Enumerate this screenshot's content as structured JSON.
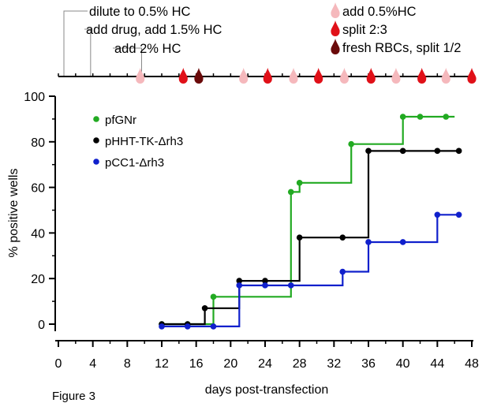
{
  "figure_label": "Figure 3",
  "colors": {
    "figure_label": "#e020e0",
    "pfGNr": "#22aa22",
    "pHHT": "#000000",
    "pCC1": "#1020cc",
    "drop_pale": "#f5b8bc",
    "drop_red": "#e01018",
    "drop_dark": "#6a0a0a"
  },
  "timeline": {
    "events": [
      {
        "label": "dilute to 0.5% HC",
        "day": 0
      },
      {
        "label": "add drug, add 1.5% HC",
        "day": 2
      },
      {
        "label": "add 2% HC",
        "day": 6
      }
    ],
    "legend": [
      {
        "label": "add 0.5%HC",
        "type": "pale",
        "icon": "pale-drop-icon"
      },
      {
        "label": "split 2:3",
        "type": "red",
        "icon": "red-drop-icon"
      },
      {
        "label": "fresh RBCs, split 1/2",
        "type": "dark",
        "icon": "dark-drop-icon"
      }
    ],
    "drops": [
      {
        "day": 9.5,
        "type": "pale"
      },
      {
        "day": 14.5,
        "type": "red"
      },
      {
        "day": 16.3,
        "type": "dark"
      },
      {
        "day": 21.5,
        "type": "pale"
      },
      {
        "day": 24.3,
        "type": "red"
      },
      {
        "day": 27.3,
        "type": "pale"
      },
      {
        "day": 30.2,
        "type": "red"
      },
      {
        "day": 33.2,
        "type": "pale"
      },
      {
        "day": 36.3,
        "type": "red"
      },
      {
        "day": 39.2,
        "type": "pale"
      },
      {
        "day": 42.2,
        "type": "red"
      },
      {
        "day": 45,
        "type": "pale"
      },
      {
        "day": 48,
        "type": "red"
      }
    ]
  },
  "chart_data": {
    "type": "line",
    "title": "",
    "xlabel": "days post-transfection",
    "ylabel": "% positive wells",
    "xlim": [
      0,
      48
    ],
    "ylim": [
      -5,
      100
    ],
    "xticks": [
      0,
      4,
      8,
      12,
      16,
      20,
      24,
      28,
      32,
      36,
      40,
      44,
      48
    ],
    "yticks": [
      0,
      20,
      40,
      60,
      80,
      100
    ],
    "grid": false,
    "legend_position": "top-left",
    "series": [
      {
        "name": "pfGNr",
        "color": "#22aa22",
        "step": [
          [
            12,
            0
          ],
          [
            18,
            0
          ],
          [
            18,
            12
          ],
          [
            27,
            12
          ],
          [
            27,
            58
          ],
          [
            28,
            58
          ],
          [
            28,
            62
          ],
          [
            34,
            62
          ],
          [
            34,
            79
          ],
          [
            40,
            79
          ],
          [
            40,
            91
          ],
          [
            46,
            91
          ]
        ],
        "points": [
          [
            12,
            0
          ],
          [
            15,
            0
          ],
          [
            18,
            12
          ],
          [
            27,
            58
          ],
          [
            28,
            62
          ],
          [
            34,
            79
          ],
          [
            40,
            91
          ],
          [
            42,
            91
          ],
          [
            45,
            91
          ]
        ]
      },
      {
        "name": "pHHT-TK-Δrh3",
        "color": "#000000",
        "step": [
          [
            12,
            0
          ],
          [
            17,
            0
          ],
          [
            17,
            7
          ],
          [
            21,
            7
          ],
          [
            21,
            19
          ],
          [
            28,
            19
          ],
          [
            28,
            38
          ],
          [
            36,
            38
          ],
          [
            36,
            76
          ],
          [
            46.5,
            76
          ]
        ],
        "points": [
          [
            12,
            0
          ],
          [
            15,
            0
          ],
          [
            17,
            7
          ],
          [
            21,
            19
          ],
          [
            24,
            19
          ],
          [
            28,
            38
          ],
          [
            33,
            38
          ],
          [
            36,
            76
          ],
          [
            40,
            76
          ],
          [
            44,
            76
          ],
          [
            46.5,
            76
          ]
        ]
      },
      {
        "name": "pCC1-Δrh3",
        "color": "#1020cc",
        "step": [
          [
            12,
            -1
          ],
          [
            21,
            -1
          ],
          [
            21,
            17
          ],
          [
            33,
            17
          ],
          [
            33,
            23
          ],
          [
            36,
            23
          ],
          [
            36,
            36
          ],
          [
            44,
            36
          ],
          [
            44,
            48
          ],
          [
            46.5,
            48
          ]
        ],
        "points": [
          [
            12,
            -1
          ],
          [
            15,
            -1
          ],
          [
            18,
            -1
          ],
          [
            21,
            17
          ],
          [
            24,
            17
          ],
          [
            27,
            17
          ],
          [
            33,
            23
          ],
          [
            36,
            36
          ],
          [
            40,
            36
          ],
          [
            44,
            48
          ],
          [
            46.5,
            48
          ]
        ]
      }
    ]
  }
}
